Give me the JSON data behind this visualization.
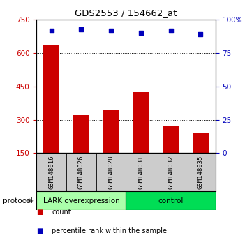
{
  "title": "GDS2553 / 154662_at",
  "samples": [
    "GSM148016",
    "GSM148026",
    "GSM148028",
    "GSM148031",
    "GSM148032",
    "GSM148035"
  ],
  "counts": [
    635,
    322,
    345,
    425,
    275,
    240
  ],
  "percentile_ranks": [
    92,
    93,
    92,
    90,
    92,
    89
  ],
  "ylim_left": [
    150,
    750
  ],
  "ylim_right": [
    0,
    100
  ],
  "yticks_left": [
    150,
    300,
    450,
    600,
    750
  ],
  "yticks_right": [
    0,
    25,
    50,
    75,
    100
  ],
  "ytick_labels_right": [
    "0",
    "25",
    "50",
    "75",
    "100%"
  ],
  "bar_color": "#cc0000",
  "dot_color": "#0000bb",
  "groups": [
    {
      "label": "LARK overexpression",
      "start": 0,
      "end": 3,
      "color": "#aaffaa"
    },
    {
      "label": "control",
      "start": 3,
      "end": 6,
      "color": "#00dd55"
    }
  ],
  "protocol_label": "protocol",
  "legend_items": [
    {
      "color": "#cc0000",
      "label": "count"
    },
    {
      "color": "#0000bb",
      "label": "percentile rank within the sample"
    }
  ],
  "background_color": "#ffffff",
  "left_axis_color": "#cc0000",
  "right_axis_color": "#0000bb",
  "tick_label_area_color": "#cccccc",
  "bar_bottom": 150,
  "bar_width": 0.55
}
